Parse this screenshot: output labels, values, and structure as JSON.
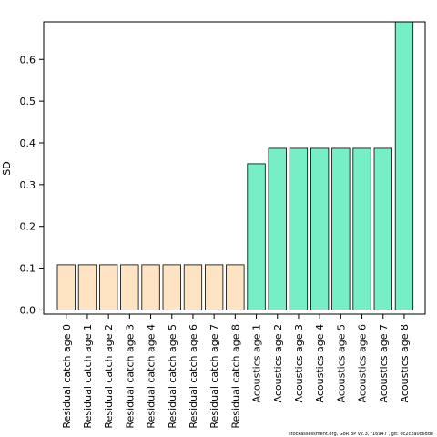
{
  "chart_data": {
    "type": "bar",
    "title": "",
    "xlabel": "",
    "ylabel": "SD",
    "ylim": [
      -0.01,
      0.69
    ],
    "yticks": [
      "0.0",
      "0.1",
      "0.2",
      "0.3",
      "0.4",
      "0.5",
      "0.6"
    ],
    "categories": [
      "Residual catch age 0",
      "Residual catch age 1",
      "Residual catch age 2",
      "Residual catch age 3",
      "Residual catch age 4",
      "Residual catch age 5",
      "Residual catch age 6",
      "Residual catch age 7",
      "Residual catch age 8",
      "Acoustics age 1",
      "Acoustics age 2",
      "Acoustics age 3",
      "Acoustics age 4",
      "Acoustics age 5",
      "Acoustics age 6",
      "Acoustics age 7",
      "Acoustics age 8"
    ],
    "values": [
      0.108,
      0.108,
      0.108,
      0.108,
      0.108,
      0.108,
      0.108,
      0.108,
      0.108,
      0.35,
      0.387,
      0.387,
      0.387,
      0.387,
      0.387,
      0.387,
      0.69
    ],
    "bar_colors": [
      "#ffe4c4",
      "#ffe4c4",
      "#ffe4c4",
      "#ffe4c4",
      "#ffe4c4",
      "#ffe4c4",
      "#ffe4c4",
      "#ffe4c4",
      "#ffe4c4",
      "#76eec6",
      "#76eec6",
      "#76eec6",
      "#76eec6",
      "#76eec6",
      "#76eec6",
      "#76eec6",
      "#76eec6"
    ],
    "grid": false,
    "legend": "none"
  },
  "footer": {
    "text": "stockassessment.org, GoR BP v2.3, r16947 , git: ec2c2a0c6dde"
  }
}
